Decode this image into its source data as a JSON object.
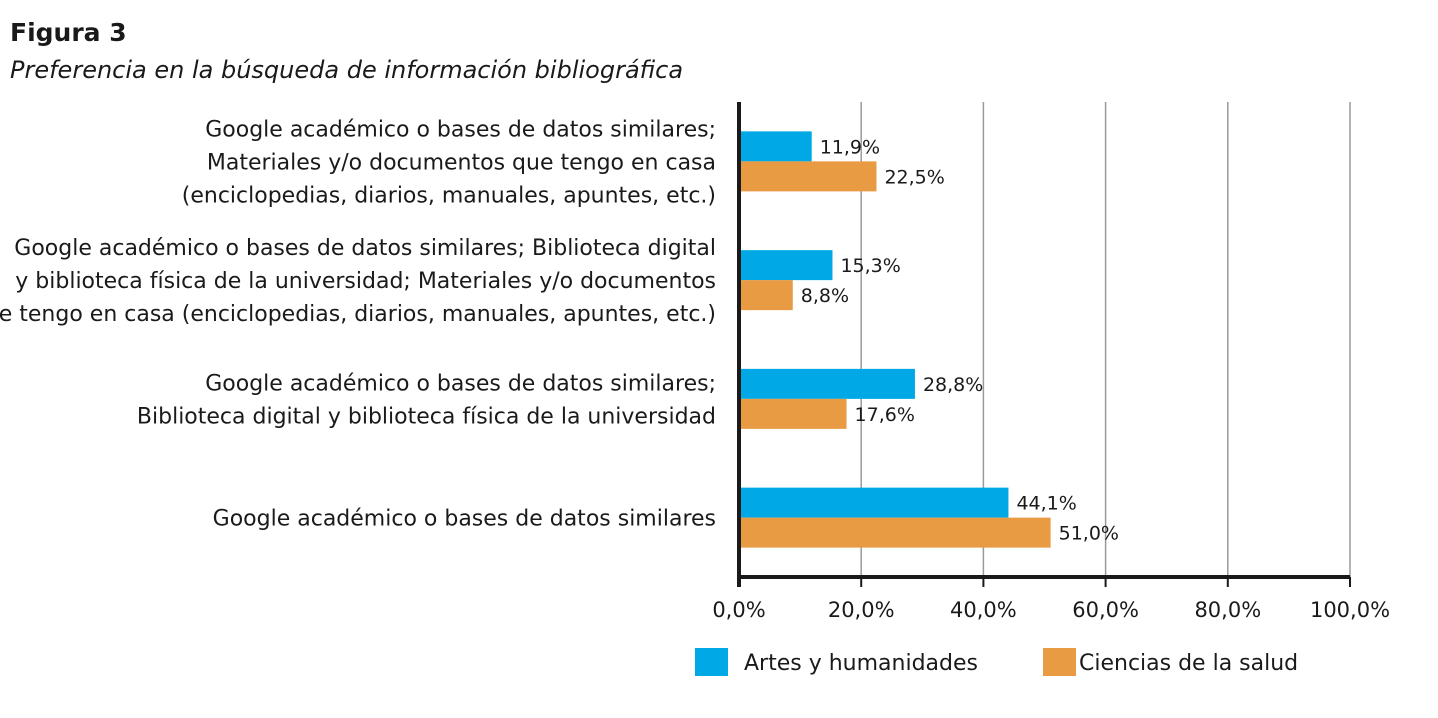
{
  "figure": {
    "label": "Figura 3",
    "title": "Preferencia en la búsqueda de información bibliográfica"
  },
  "chart_data": {
    "type": "bar",
    "orientation": "horizontal",
    "categories": [
      [
        "Google académico o bases de datos similares;",
        "Materiales y/o documentos que tengo en casa",
        "(enciclopedias, diarios, manuales, apuntes, etc.)"
      ],
      [
        "Google académico o bases de datos similares; Biblioteca digital",
        "y biblioteca física de la universidad; Materiales y/o documentos",
        "que tengo en casa (enciclopedias, diarios, manuales, apuntes, etc.)"
      ],
      [
        "Google académico o bases de datos similares;",
        "Biblioteca digital y biblioteca física de la universidad"
      ],
      [
        "Google académico o bases de datos similares"
      ]
    ],
    "series": [
      {
        "name": "Artes y humanidades",
        "color": "#00a9e6",
        "values": [
          11.9,
          15.3,
          28.8,
          44.1
        ],
        "labels": [
          "11,9%",
          "15,3%",
          "28,8%",
          "44,1%"
        ]
      },
      {
        "name": "Ciencias de la salud",
        "color": "#e89b43",
        "values": [
          22.5,
          8.8,
          17.6,
          51.0
        ],
        "labels": [
          "22,5%",
          "8,8%",
          "17,6%",
          "51,0%"
        ]
      }
    ],
    "xlim": [
      0,
      100
    ],
    "xticks": [
      0,
      20,
      40,
      60,
      80,
      100
    ],
    "xtick_labels": [
      "0,0%",
      "20,0%",
      "40,0%",
      "60,0%",
      "80,0%",
      "100,0%"
    ],
    "grid": "vertical",
    "legend": "bottom"
  }
}
